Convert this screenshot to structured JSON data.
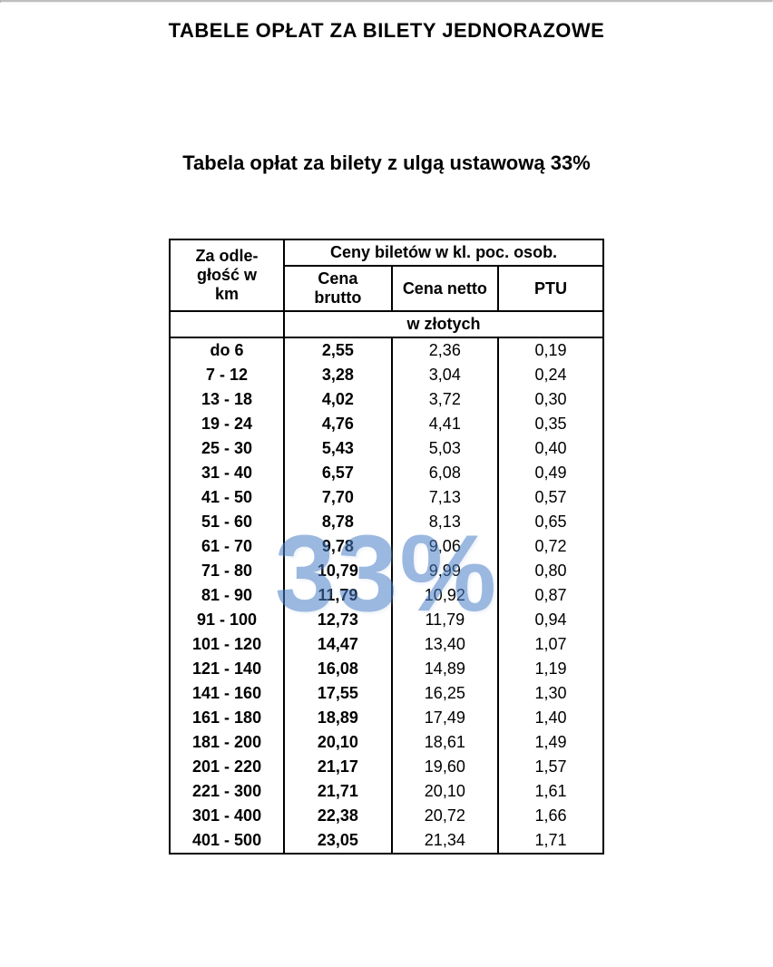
{
  "title_main": "TABELE OPŁAT ZA BILETY JEDNORAZOWE",
  "subtitle": "Tabela opłat za bilety z ulgą ustawową 33%",
  "watermark": "33%",
  "headers": {
    "distance": "Za odle-\ngłość w\nkm",
    "group": "Ceny biletów w kl. poc. osob.",
    "brutto": "Cena brutto",
    "netto": "Cena netto",
    "ptu": "PTU",
    "unit": "w złotych"
  },
  "rows": [
    {
      "dist": "do 6",
      "brutto": "2,55",
      "netto": "2,36",
      "ptu": "0,19"
    },
    {
      "dist": "7 - 12",
      "brutto": "3,28",
      "netto": "3,04",
      "ptu": "0,24"
    },
    {
      "dist": "13 - 18",
      "brutto": "4,02",
      "netto": "3,72",
      "ptu": "0,30"
    },
    {
      "dist": "19 - 24",
      "brutto": "4,76",
      "netto": "4,41",
      "ptu": "0,35"
    },
    {
      "dist": "25 - 30",
      "brutto": "5,43",
      "netto": "5,03",
      "ptu": "0,40"
    },
    {
      "dist": "31 - 40",
      "brutto": "6,57",
      "netto": "6,08",
      "ptu": "0,49"
    },
    {
      "dist": "41 - 50",
      "brutto": "7,70",
      "netto": "7,13",
      "ptu": "0,57"
    },
    {
      "dist": "51 - 60",
      "brutto": "8,78",
      "netto": "8,13",
      "ptu": "0,65"
    },
    {
      "dist": "61 - 70",
      "brutto": "9,78",
      "netto": "9,06",
      "ptu": "0,72"
    },
    {
      "dist": "71 - 80",
      "brutto": "10,79",
      "netto": "9,99",
      "ptu": "0,80"
    },
    {
      "dist": "81 - 90",
      "brutto": "11,79",
      "netto": "10,92",
      "ptu": "0,87"
    },
    {
      "dist": "91 - 100",
      "brutto": "12,73",
      "netto": "11,79",
      "ptu": "0,94"
    },
    {
      "dist": "101 - 120",
      "brutto": "14,47",
      "netto": "13,40",
      "ptu": "1,07"
    },
    {
      "dist": "121 - 140",
      "brutto": "16,08",
      "netto": "14,89",
      "ptu": "1,19"
    },
    {
      "dist": "141 - 160",
      "brutto": "17,55",
      "netto": "16,25",
      "ptu": "1,30"
    },
    {
      "dist": "161 - 180",
      "brutto": "18,89",
      "netto": "17,49",
      "ptu": "1,40"
    },
    {
      "dist": "181 - 200",
      "brutto": "20,10",
      "netto": "18,61",
      "ptu": "1,49"
    },
    {
      "dist": "201 - 220",
      "brutto": "21,17",
      "netto": "19,60",
      "ptu": "1,57"
    },
    {
      "dist": "221 - 300",
      "brutto": "21,71",
      "netto": "20,10",
      "ptu": "1,61"
    },
    {
      "dist": "301 - 400",
      "brutto": "22,38",
      "netto": "20,72",
      "ptu": "1,66"
    },
    {
      "dist": "401 - 500",
      "brutto": "23,05",
      "netto": "21,34",
      "ptu": "1,71"
    }
  ]
}
